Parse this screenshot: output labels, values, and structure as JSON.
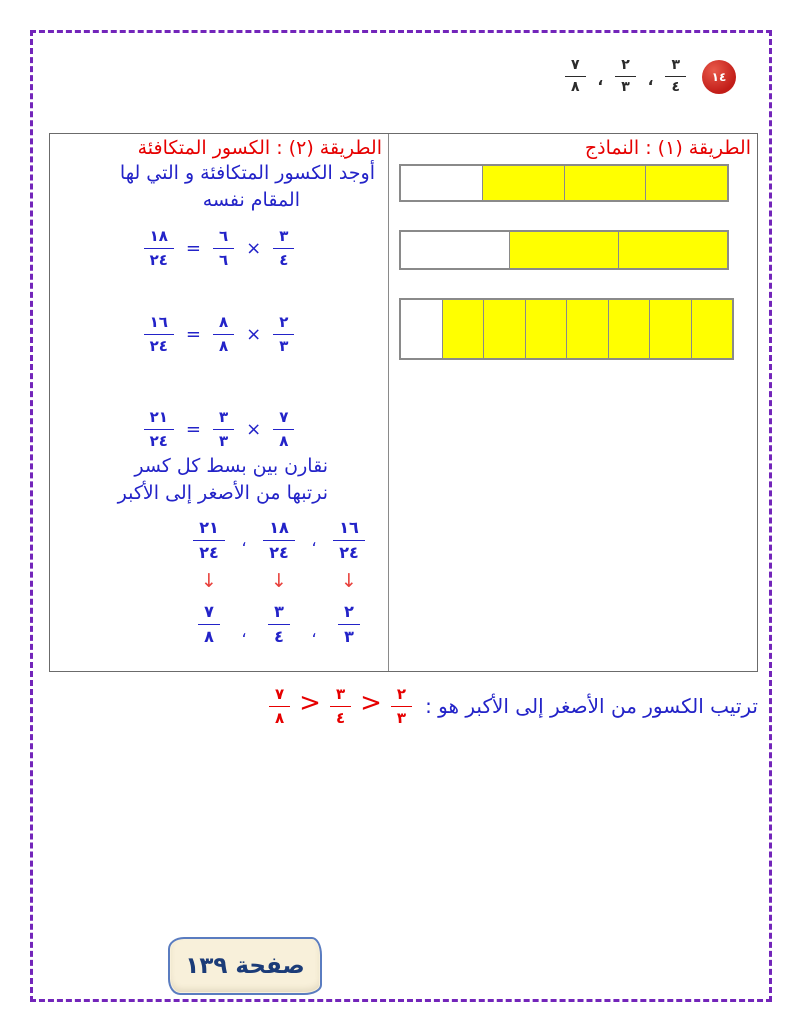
{
  "colors": {
    "red_text": "#e60000",
    "blue_text": "#2323c8",
    "yellow_fill": "#ffff00",
    "bar_border": "#8a8a8a",
    "page_border_purple": "#7325ba",
    "badge_bg": "#f8f0da",
    "badge_border": "#5a7cc0",
    "badge_text": "#1c3c78",
    "question_circle_red": "#c21d18"
  },
  "header": {
    "question_number": "١٤",
    "separator": "،",
    "fractions": [
      {
        "num": "٣",
        "den": "٤"
      },
      {
        "num": "٢",
        "den": "٣"
      },
      {
        "num": "٧",
        "den": "٨"
      }
    ]
  },
  "method1": {
    "title": "الطريقة (١) : النماذج",
    "bars": [
      {
        "label": "3/4",
        "total": 4,
        "shaded": 3
      },
      {
        "label": "2/3",
        "total": 3,
        "shaded": 2
      },
      {
        "label": "7/8",
        "total": 8,
        "shaded": 7
      }
    ]
  },
  "method2": {
    "title": "الطريقة (٢) : الكسور المتكافئة",
    "instruction": "أوجد الكسور المتكافئة و التي لها",
    "instruction2": "المقام نفسه",
    "times": "×",
    "equals": "=",
    "separator": "،",
    "arrow": "↓",
    "equations": [
      {
        "f1": {
          "num": "٣",
          "den": "٤"
        },
        "f2": {
          "num": "٦",
          "den": "٦"
        },
        "result": {
          "num": "١٨",
          "den": "٢٤"
        }
      },
      {
        "f1": {
          "num": "٢",
          "den": "٣"
        },
        "f2": {
          "num": "٨",
          "den": "٨"
        },
        "result": {
          "num": "١٦",
          "den": "٢٤"
        }
      },
      {
        "f1": {
          "num": "٧",
          "den": "٨"
        },
        "f2": {
          "num": "٣",
          "den": "٣"
        },
        "result": {
          "num": "٢١",
          "den": "٢٤"
        }
      }
    ],
    "compare_note": "نقارن بين بسط كل كسر",
    "order_note": "نرتبها من الأصغر إلى الأكبر",
    "ordered_equivalents": [
      {
        "num": "١٦",
        "den": "٢٤"
      },
      {
        "num": "١٨",
        "den": "٢٤"
      },
      {
        "num": "٢١",
        "den": "٢٤"
      }
    ],
    "ordered_originals": [
      {
        "num": "٢",
        "den": "٣"
      },
      {
        "num": "٣",
        "den": "٤"
      },
      {
        "num": "٧",
        "den": "٨"
      }
    ]
  },
  "result": {
    "label": "ترتيب الكسور من الأصغر إلى الأكبر هو :",
    "operator": ">",
    "fractions": [
      {
        "num": "٢",
        "den": "٣"
      },
      {
        "num": "٣",
        "den": "٤"
      },
      {
        "num": "٧",
        "den": "٨"
      }
    ]
  },
  "footer": {
    "page_label": "صفحة ١٣٩"
  }
}
